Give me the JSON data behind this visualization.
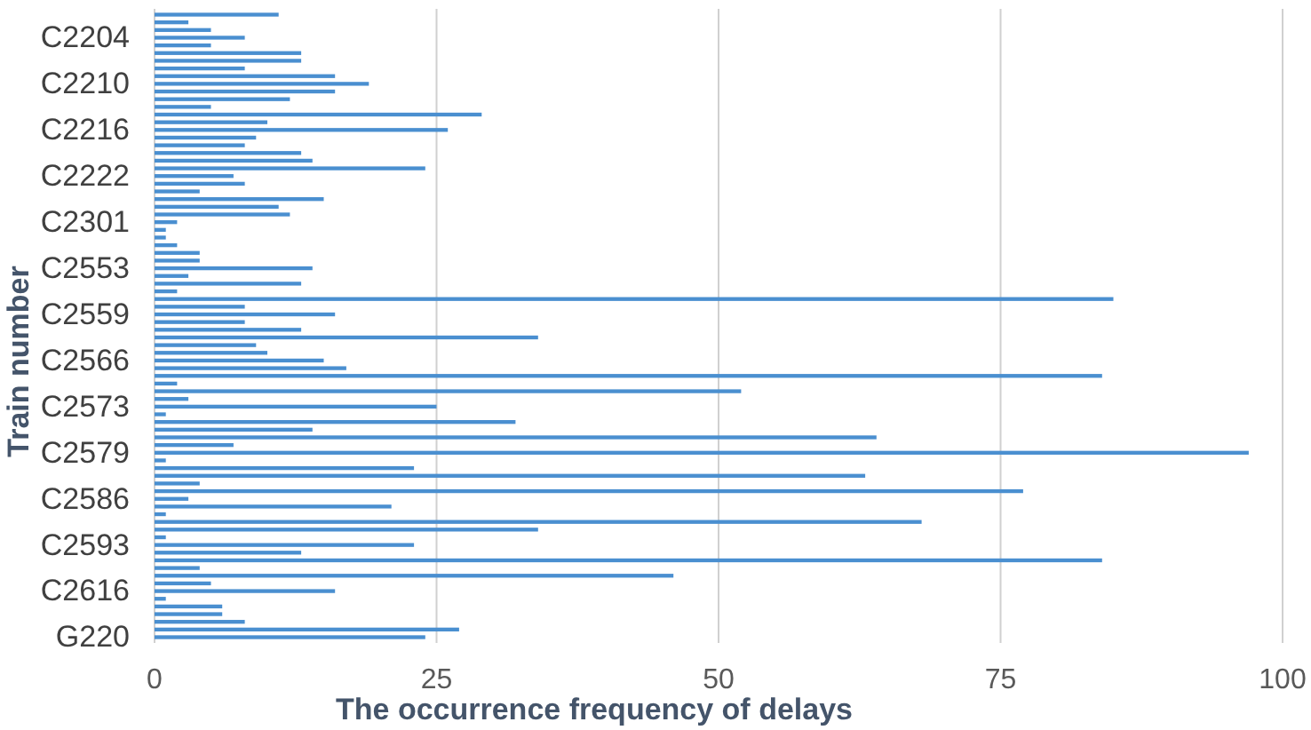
{
  "chart_data": {
    "type": "bar",
    "orientation": "horizontal",
    "xlabel": "The occurrence frequency of delays",
    "ylabel": "Train number",
    "categories": [
      null,
      null,
      null,
      "C2204",
      null,
      null,
      null,
      null,
      null,
      "C2210",
      null,
      null,
      null,
      null,
      null,
      "C2216",
      null,
      null,
      null,
      null,
      null,
      "C2222",
      null,
      null,
      null,
      null,
      null,
      "C2301",
      null,
      null,
      null,
      null,
      null,
      "C2553",
      null,
      null,
      null,
      null,
      null,
      "C2559",
      null,
      null,
      null,
      null,
      null,
      "C2566",
      null,
      null,
      null,
      null,
      null,
      "C2573",
      null,
      null,
      null,
      null,
      null,
      "C2579",
      null,
      null,
      null,
      null,
      null,
      "C2586",
      null,
      null,
      null,
      null,
      null,
      "C2593",
      null,
      null,
      null,
      null,
      null,
      "C2616",
      null,
      null,
      null,
      null,
      null,
      "G220"
    ],
    "values": [
      11,
      3,
      5,
      8,
      5,
      13,
      13,
      8,
      16,
      19,
      16,
      12,
      5,
      29,
      10,
      26,
      9,
      8,
      13,
      14,
      24,
      7,
      8,
      4,
      15,
      11,
      12,
      2,
      1,
      1,
      2,
      4,
      4,
      14,
      3,
      13,
      2,
      85,
      8,
      16,
      8,
      13,
      34,
      9,
      10,
      15,
      17,
      84,
      2,
      52,
      3,
      25,
      1,
      32,
      14,
      64,
      7,
      97,
      1,
      23,
      63,
      4,
      77,
      3,
      21,
      1,
      68,
      34,
      1,
      23,
      13,
      84,
      4,
      46,
      5,
      16,
      1,
      6,
      6,
      8,
      27,
      24
    ],
    "color": "#4a8fd0",
    "xlim": [
      0,
      100
    ],
    "xticks": [
      0,
      25,
      50,
      75,
      100
    ],
    "grid": "x"
  }
}
